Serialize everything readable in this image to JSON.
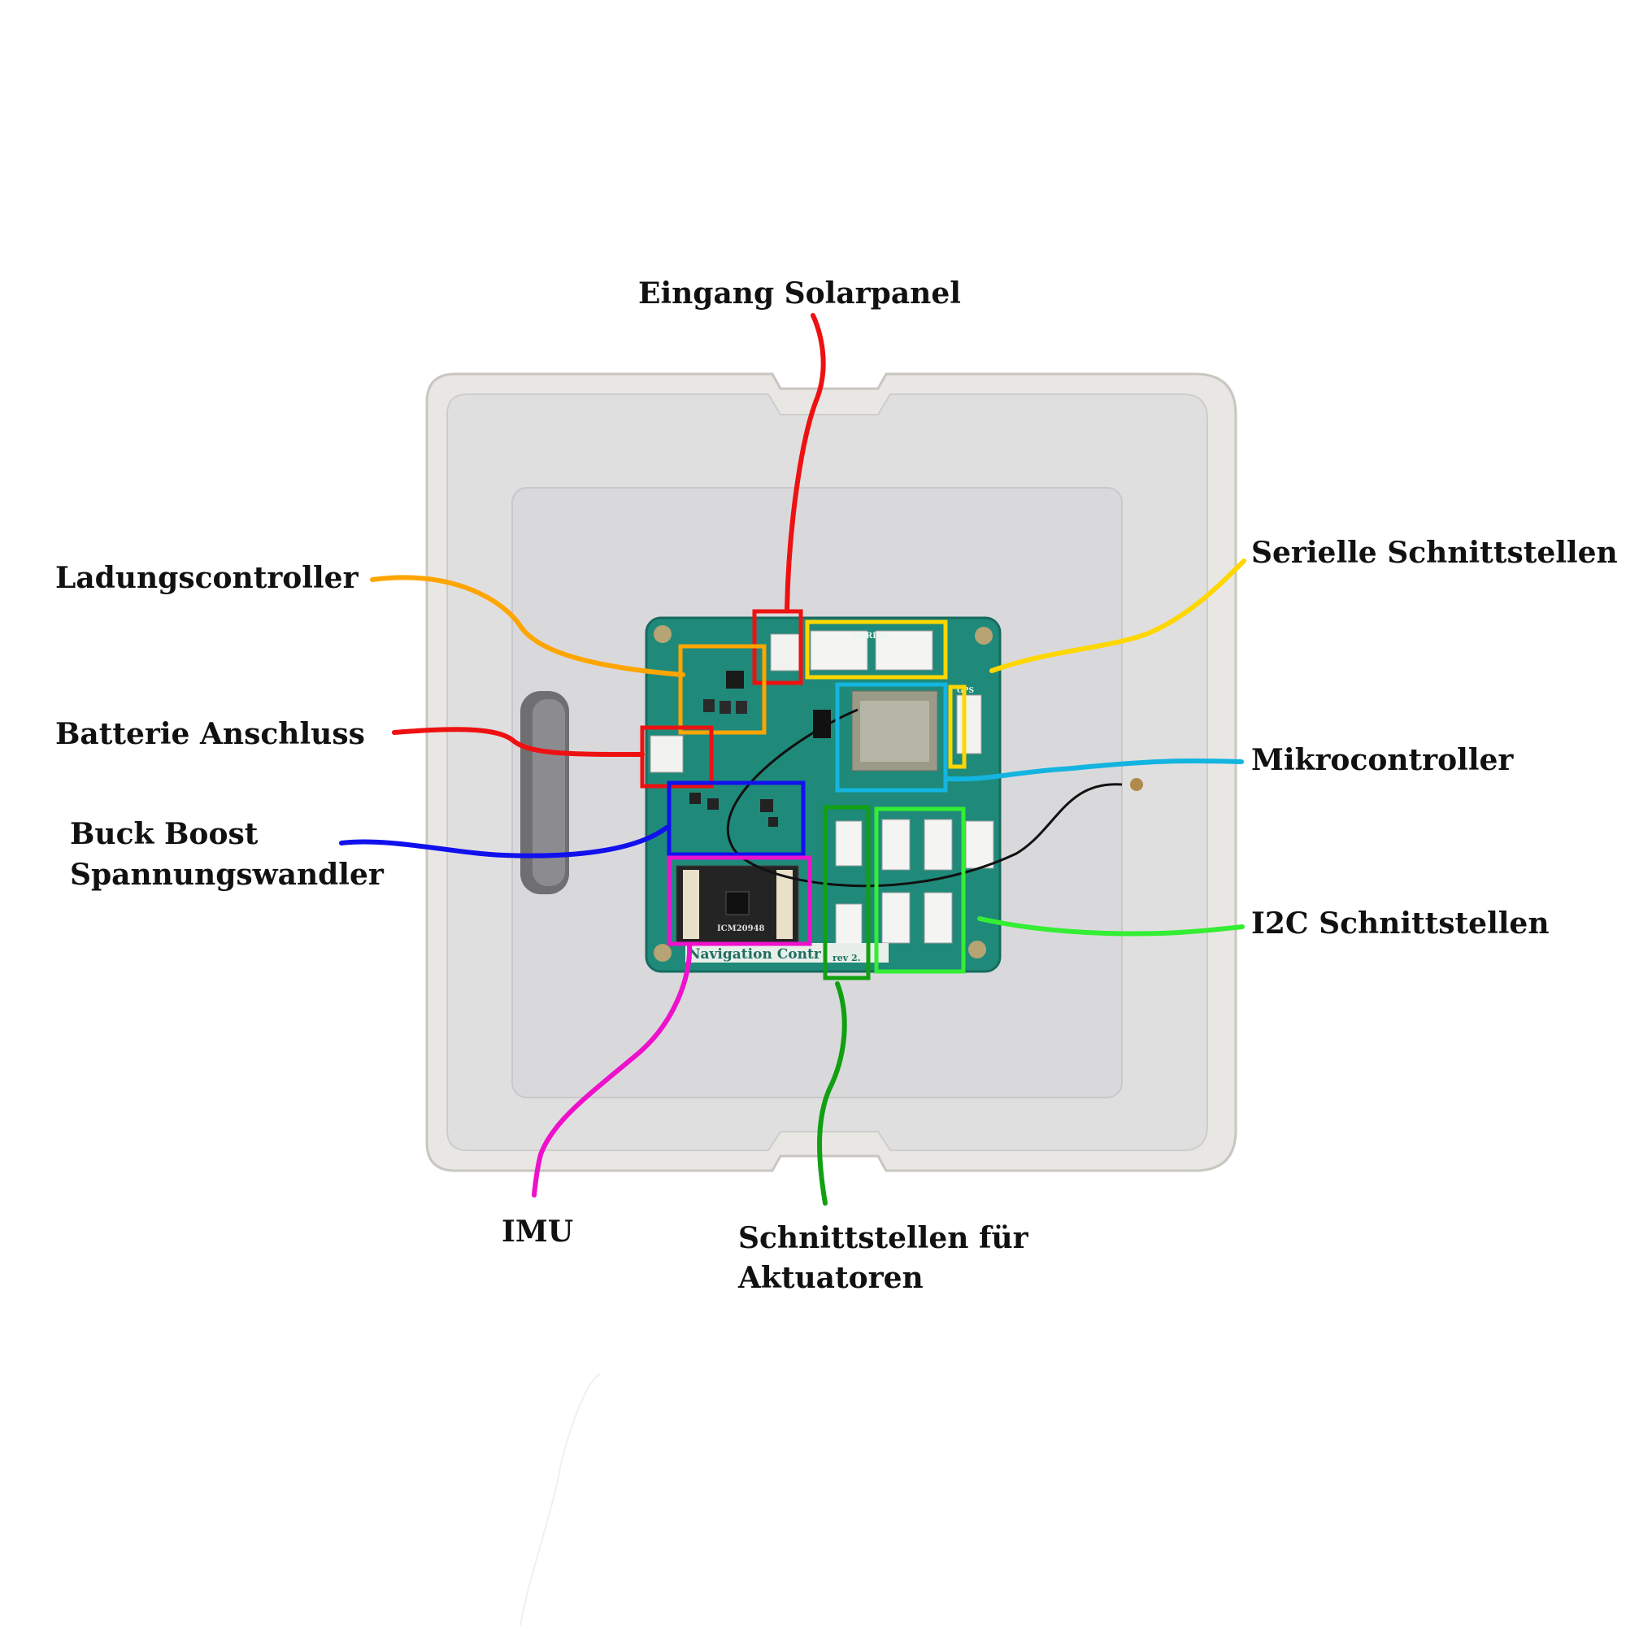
{
  "labels": {
    "solar": "Eingang Solarpanel",
    "charge": "Ladungscontroller",
    "battery": "Batterie Anschluss",
    "buck_line1": "Buck Boost",
    "buck_line2": "Spannungswandler",
    "serial": "Serielle Schnittstellen",
    "mcu": "Mikrocontroller",
    "i2c": "I2C Schnittstellen",
    "imu": "IMU",
    "act_line1": "Schnittstellen für",
    "act_line2": "Aktuatoren"
  },
  "silkscreen": {
    "board_name": "Navigation Contr",
    "revision": "rev 2.",
    "serial_tag": "SERIAL",
    "gps_tag": "GPS",
    "imu_chip": "ICM20948"
  },
  "colors": {
    "solar": "#ee1111",
    "charge": "#ffa500",
    "battery": "#ee1111",
    "buck": "#1111ee",
    "serial": "#ffd700",
    "mcu": "#14b4e0",
    "i2c": "#33ee33",
    "imu": "#ee11cc",
    "actuator": "#11a011",
    "pcb": "#1f8a7a",
    "box_outer": "#ebe9e6",
    "box_inner": "#d9d9db"
  }
}
